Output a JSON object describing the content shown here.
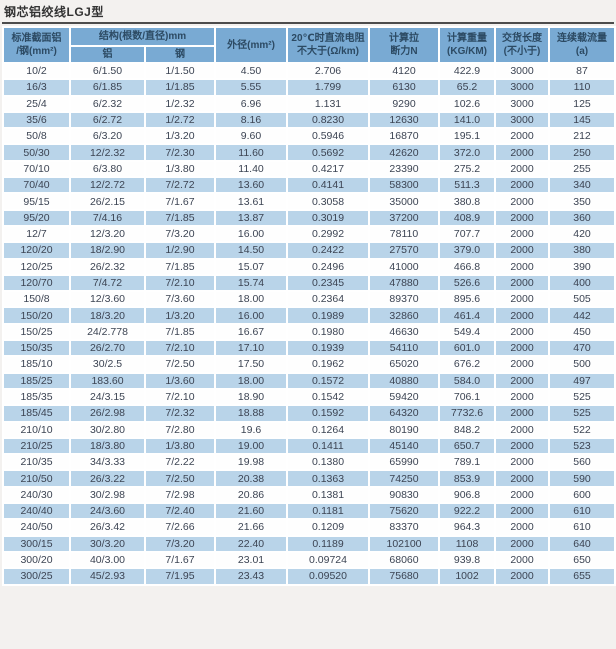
{
  "page": {
    "title": "钢芯铝绞线LGJ型"
  },
  "colors": {
    "header_bg": "#79aad3",
    "header_text": "#2c4a63",
    "row_bg": "#fefefe",
    "row_alt_bg": "#b9d4e9",
    "body_text": "#3c4453",
    "title_rule": "#4c4c4c",
    "page_bg": "#f3f1ef"
  },
  "table": {
    "headers": {
      "spec": "标准截面铝\n/钢(mm²)",
      "structure_group": "结构(根数/直径)mm",
      "structure_al": "铝",
      "structure_steel": "钢",
      "outer_diameter": "外径(mm²)",
      "dc_resistance": "20℃时直流电阻\n不大于(Ω/km)",
      "breaking_force": "计算拉\n断力N",
      "weight": "计算重量\n(KG/KM)",
      "delivery_length": "交货长度\n(不小于)",
      "current_capacity": "连续载流量(a)"
    },
    "rows": [
      [
        "10/2",
        "6/1.50",
        "1/1.50",
        "4.50",
        "2.706",
        "4120",
        "422.9",
        "3000",
        "87"
      ],
      [
        "16/3",
        "6/1.85",
        "1/1.85",
        "5.55",
        "1.799",
        "6130",
        "65.2",
        "3000",
        "110"
      ],
      [
        "25/4",
        "6/2.32",
        "1/2.32",
        "6.96",
        "1.131",
        "9290",
        "102.6",
        "3000",
        "125"
      ],
      [
        "35/6",
        "6/2.72",
        "1/2.72",
        "8.16",
        "0.8230",
        "12630",
        "141.0",
        "3000",
        "145"
      ],
      [
        "50/8",
        "6/3.20",
        "1/3.20",
        "9.60",
        "0.5946",
        "16870",
        "195.1",
        "2000",
        "212"
      ],
      [
        "50/30",
        "12/2.32",
        "7/2.30",
        "11.60",
        "0.5692",
        "42620",
        "372.0",
        "2000",
        "250"
      ],
      [
        "70/10",
        "6/3.80",
        "1/3.80",
        "11.40",
        "0.4217",
        "23390",
        "275.2",
        "2000",
        "255"
      ],
      [
        "70/40",
        "12/2.72",
        "7/2.72",
        "13.60",
        "0.4141",
        "58300",
        "511.3",
        "2000",
        "340"
      ],
      [
        "95/15",
        "26/2.15",
        "7/1.67",
        "13.61",
        "0.3058",
        "35000",
        "380.8",
        "2000",
        "350"
      ],
      [
        "95/20",
        "7/4.16",
        "7/1.85",
        "13.87",
        "0.3019",
        "37200",
        "408.9",
        "2000",
        "360"
      ],
      [
        "12/7",
        "12/3.20",
        "7/3.20",
        "16.00",
        "0.2992",
        "78110",
        "707.7",
        "2000",
        "420"
      ],
      [
        "120/20",
        "18/2.90",
        "1/2.90",
        "14.50",
        "0.2422",
        "27570",
        "379.0",
        "2000",
        "380"
      ],
      [
        "120/25",
        "26/2.32",
        "7/1.85",
        "15.07",
        "0.2496",
        "41000",
        "466.8",
        "2000",
        "390"
      ],
      [
        "120/70",
        "7/4.72",
        "7/2.10",
        "15.74",
        "0.2345",
        "47880",
        "526.6",
        "2000",
        "400"
      ],
      [
        "150/8",
        "12/3.60",
        "7/3.60",
        "18.00",
        "0.2364",
        "89370",
        "895.6",
        "2000",
        "505"
      ],
      [
        "150/20",
        "18/3.20",
        "1/3.20",
        "16.00",
        "0.1989",
        "32860",
        "461.4",
        "2000",
        "442"
      ],
      [
        "150/25",
        "24/2.778",
        "7/1.85",
        "16.67",
        "0.1980",
        "46630",
        "549.4",
        "2000",
        "450"
      ],
      [
        "150/35",
        "26/2.70",
        "7/2.10",
        "17.10",
        "0.1939",
        "54110",
        "601.0",
        "2000",
        "470"
      ],
      [
        "185/10",
        "30/2.5",
        "7/2.50",
        "17.50",
        "0.1962",
        "65020",
        "676.2",
        "2000",
        "500"
      ],
      [
        "185/25",
        "183.60",
        "1/3.60",
        "18.00",
        "0.1572",
        "40880",
        "584.0",
        "2000",
        "497"
      ],
      [
        "185/35",
        "24/3.15",
        "7/2.10",
        "18.90",
        "0.1542",
        "59420",
        "706.1",
        "2000",
        "525"
      ],
      [
        "185/45",
        "26/2.98",
        "7/2.32",
        "18.88",
        "0.1592",
        "64320",
        "7732.6",
        "2000",
        "525"
      ],
      [
        "210/10",
        "30/2.80",
        "7/2.80",
        "19.6",
        "0.1264",
        "80190",
        "848.2",
        "2000",
        "522"
      ],
      [
        "210/25",
        "18/3.80",
        "1/3.80",
        "19.00",
        "0.1411",
        "45140",
        "650.7",
        "2000",
        "523"
      ],
      [
        "210/35",
        "34/3.33",
        "7/2.22",
        "19.98",
        "0.1380",
        "65990",
        "789.1",
        "2000",
        "560"
      ],
      [
        "210/50",
        "26/3.22",
        "7/2.50",
        "20.38",
        "0.1363",
        "74250",
        "853.9",
        "2000",
        "590"
      ],
      [
        "240/30",
        "30/2.98",
        "7/2.98",
        "20.86",
        "0.1381",
        "90830",
        "906.8",
        "2000",
        "600"
      ],
      [
        "240/40",
        "24/3.60",
        "7/2.40",
        "21.60",
        "0.1181",
        "75620",
        "922.2",
        "2000",
        "610"
      ],
      [
        "240/50",
        "26/3.42",
        "7/2.66",
        "21.66",
        "0.1209",
        "83370",
        "964.3",
        "2000",
        "610"
      ],
      [
        "300/15",
        "30/3.20",
        "7/3.20",
        "22.40",
        "0.1189",
        "102100",
        "1108",
        "2000",
        "640"
      ],
      [
        "300/20",
        "40/3.00",
        "7/1.67",
        "23.01",
        "0.09724",
        "68060",
        "939.8",
        "2000",
        "650"
      ],
      [
        "300/25",
        "45/2.93",
        "7/1.95",
        "23.43",
        "0.09520",
        "75680",
        "1002",
        "2000",
        "655"
      ]
    ]
  }
}
